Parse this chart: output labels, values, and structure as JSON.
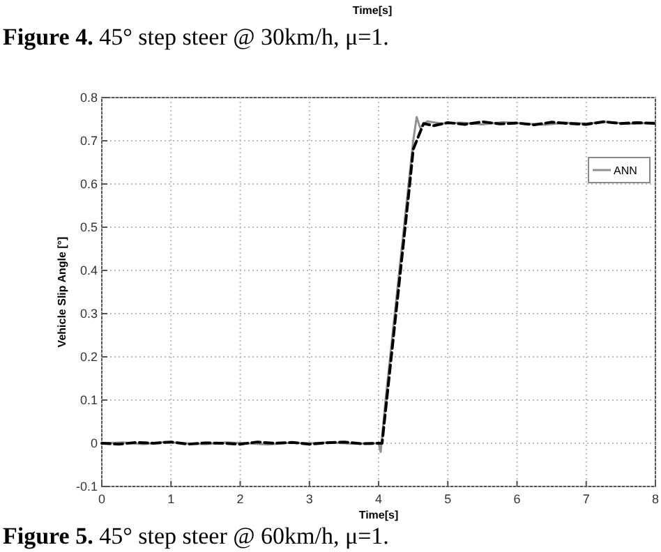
{
  "chart_data": {
    "type": "line",
    "title": "Figure 5. 45° step steer @ 60km/h, μ=1.",
    "xlabel": "Time[s]",
    "ylabel": "Vehicle Slip Angle [°]",
    "annotations": [
      "Time[s]",
      "Figure 4. 45° step steer @ 30km/h, μ=1."
    ],
    "xlim": [
      0,
      8
    ],
    "xticks": [
      0,
      1,
      2,
      3,
      4,
      5,
      6,
      7,
      8
    ],
    "ylim": [
      -0.1,
      0.8
    ],
    "yticks": [
      -0.1,
      0,
      0.1,
      0.2,
      0.3,
      0.4,
      0.5,
      0.6,
      0.7,
      0.8
    ],
    "grid": true,
    "legend": "top right",
    "series": [
      {
        "name": "ANN",
        "color": "#909090",
        "line_style": "solid",
        "x": [
          0,
          0.3,
          0.6,
          0.9,
          1.2,
          1.5,
          1.8,
          2.1,
          2.4,
          2.7,
          3,
          3.3,
          3.6,
          3.9,
          4,
          4.03,
          4.1,
          4.2,
          4.3,
          4.4,
          4.5,
          4.55,
          4.6,
          4.7,
          4.9,
          5.2,
          5.5,
          5.8,
          6.1,
          6.4,
          6.7,
          7,
          7.3,
          7.6,
          8
        ],
        "values": [
          0,
          0.002,
          -0.002,
          0.003,
          0,
          -0.002,
          0.002,
          0,
          -0.003,
          0.001,
          0,
          0.002,
          -0.001,
          0,
          0,
          -0.02,
          0.1,
          0.25,
          0.4,
          0.55,
          0.7,
          0.755,
          0.73,
          0.745,
          0.74,
          0.742,
          0.738,
          0.743,
          0.74,
          0.737,
          0.742,
          0.74,
          0.744,
          0.739,
          0.742
        ]
      },
      {
        "color": "#000000",
        "line_style": "dashed",
        "x": [
          0,
          0.25,
          0.5,
          0.75,
          1,
          1.25,
          1.5,
          1.75,
          2,
          2.25,
          2.5,
          2.75,
          3,
          3.25,
          3.5,
          3.75,
          4,
          4.05,
          4.15,
          4.25,
          4.35,
          4.45,
          4.5,
          4.6,
          4.65,
          4.8,
          5,
          5.25,
          5.5,
          5.75,
          6,
          6.25,
          6.5,
          6.75,
          7,
          7.25,
          7.5,
          7.75,
          8
        ],
        "values": [
          0,
          -0.002,
          0.002,
          0,
          0.003,
          -0.002,
          0.001,
          0,
          -0.002,
          0.003,
          0,
          0.002,
          -0.002,
          0.001,
          0.003,
          -0.001,
          0,
          0,
          0.15,
          0.3,
          0.45,
          0.6,
          0.68,
          0.72,
          0.74,
          0.735,
          0.742,
          0.738,
          0.744,
          0.739,
          0.741,
          0.737,
          0.743,
          0.74,
          0.738,
          0.744,
          0.74,
          0.742,
          0.74
        ]
      }
    ]
  }
}
